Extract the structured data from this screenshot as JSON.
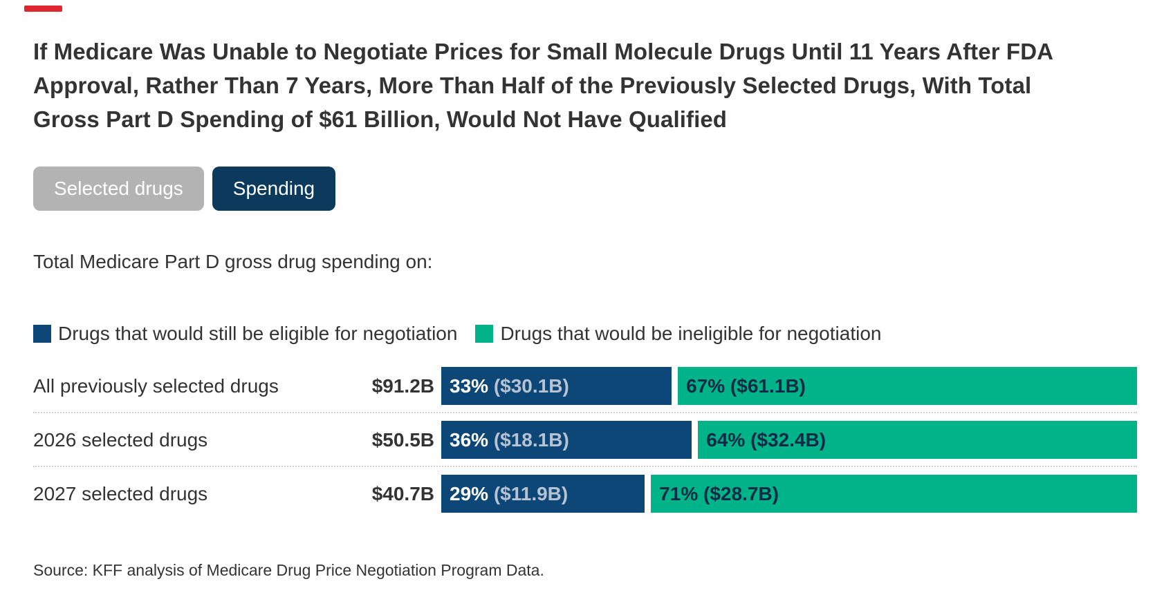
{
  "accent": {
    "red_dash_color": "#e0262e"
  },
  "title": "If Medicare Was Unable to Negotiate Prices for Small Molecule Drugs Until 11 Years After FDA Approval, Rather Than 7 Years, More Than Half of the Previously Selected Drugs, With Total Gross Part D Spending of $61 Billion, Would Not Have Qualified",
  "tabs": {
    "selected_drugs": {
      "label": "Selected drugs",
      "active": false,
      "bg": "#b3b3b3"
    },
    "spending": {
      "label": "Spending",
      "active": true,
      "bg": "#0c3a5c"
    }
  },
  "tagline": "Total Medicare Part D gross drug spending on:",
  "legend": {
    "eligible": {
      "label": "Drugs that would still be eligible for negotiation",
      "color": "#0d4778"
    },
    "ineligible": {
      "label": "Drugs that would be ineligible for negotiation",
      "color": "#00b388"
    }
  },
  "rows": [
    {
      "label": "All previously selected drugs",
      "total": "$91.2B",
      "eligible_pct": 33,
      "eligible_pct_label": "33% ",
      "eligible_amount": "($30.1B)",
      "ineligible_pct": 67,
      "ineligible_pct_label": "67% ",
      "ineligible_amount": "($61.1B)"
    },
    {
      "label": "2026 selected drugs",
      "total": "$50.5B",
      "eligible_pct": 36,
      "eligible_pct_label": "36% ",
      "eligible_amount": "($18.1B)",
      "ineligible_pct": 64,
      "ineligible_pct_label": "64% ",
      "ineligible_amount": "($32.4B)"
    },
    {
      "label": "2027 selected drugs",
      "total": "$40.7B",
      "eligible_pct": 29,
      "eligible_pct_label": "29% ",
      "eligible_amount": "($11.9B)",
      "ineligible_pct": 71,
      "ineligible_pct_label": "71% ",
      "ineligible_amount": "($28.7B)"
    }
  ],
  "source": "Source: KFF analysis of Medicare Drug Price Negotiation Program Data.",
  "chart_data": {
    "type": "bar",
    "subtype": "horizontal-stacked-percent",
    "title": "If Medicare Was Unable to Negotiate Prices for Small Molecule Drugs Until 11 Years After FDA Approval, Rather Than 7 Years, More Than Half of the Previously Selected Drugs, With Total Gross Part D Spending of $61 Billion, Would Not Have Qualified",
    "subtitle": "Total Medicare Part D gross drug spending on:",
    "categories": [
      "All previously selected drugs",
      "2026 selected drugs",
      "2027 selected drugs"
    ],
    "category_totals_billion_usd": [
      91.2,
      50.5,
      40.7
    ],
    "category_total_labels": [
      "$91.2B",
      "$50.5B",
      "$40.7B"
    ],
    "series": [
      {
        "name": "Drugs that would still be eligible for negotiation",
        "color": "#0d4778",
        "percents": [
          33,
          36,
          29
        ],
        "values_billion_usd": [
          30.1,
          18.1,
          11.9
        ],
        "data_labels": [
          "33% ($30.1B)",
          "36% ($18.1B)",
          "29% ($11.9B)"
        ]
      },
      {
        "name": "Drugs that would be ineligible for negotiation",
        "color": "#00b388",
        "percents": [
          67,
          64,
          71
        ],
        "values_billion_usd": [
          61.1,
          32.4,
          28.7
        ],
        "data_labels": [
          "67% ($61.1B)",
          "64% ($32.4B)",
          "71% ($28.7B)"
        ]
      }
    ],
    "legend_position": "top",
    "grid": false,
    "axis": "none (percent-of-total stacked bars with inline labels)",
    "source": "Source: KFF analysis of Medicare Drug Price Negotiation Program Data."
  }
}
